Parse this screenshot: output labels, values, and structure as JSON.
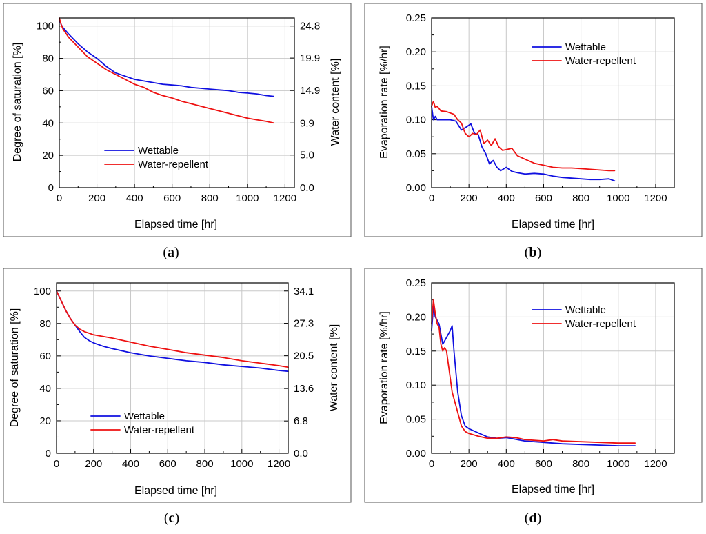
{
  "colors": {
    "wettable": "#1010e0",
    "water_repellent": "#ee1111"
  },
  "chart_data": [
    {
      "id": "a",
      "type": "line",
      "caption": "a",
      "xlabel": "Elapsed time [hr]",
      "ylabel": "Degree of saturation [%]",
      "y2label": "Water content [%]",
      "xlim": [
        0,
        1250
      ],
      "ylim": [
        0,
        105
      ],
      "xticks": [
        0,
        200,
        400,
        600,
        800,
        1000,
        1200
      ],
      "yticks": [
        0,
        20,
        40,
        60,
        80,
        100
      ],
      "y2ticks": [
        {
          "value": 0,
          "label": "0.0"
        },
        {
          "value": 20.2,
          "label": "5.0"
        },
        {
          "value": 40.0,
          "label": "9.9"
        },
        {
          "value": 60.1,
          "label": "14.9"
        },
        {
          "value": 80.2,
          "label": "19.9"
        },
        {
          "value": 100,
          "label": "24.8"
        }
      ],
      "legend": [
        "Wettable",
        "Water-repellent"
      ],
      "legend_position": "lower-left",
      "grid": true,
      "series": [
        {
          "name": "Wettable",
          "color": "wettable",
          "x": [
            0,
            10,
            20,
            50,
            100,
            150,
            200,
            250,
            300,
            350,
            400,
            450,
            500,
            550,
            600,
            650,
            700,
            750,
            800,
            850,
            900,
            950,
            1000,
            1050,
            1100,
            1140
          ],
          "y": [
            104,
            101,
            99,
            95,
            89,
            84,
            80,
            75,
            71,
            69,
            67,
            66,
            65,
            64,
            63.5,
            63,
            62,
            61.5,
            61,
            60.5,
            60,
            59,
            58.5,
            58,
            57,
            56.5
          ]
        },
        {
          "name": "Water-repellent",
          "color": "water_repellent",
          "x": [
            0,
            10,
            20,
            50,
            100,
            150,
            200,
            250,
            300,
            350,
            400,
            450,
            500,
            550,
            600,
            650,
            700,
            750,
            800,
            850,
            900,
            950,
            1000,
            1050,
            1100,
            1140
          ],
          "y": [
            105,
            101,
            98,
            93,
            87,
            81,
            77,
            73,
            70,
            67,
            64,
            62,
            59,
            57,
            55.5,
            53.5,
            52,
            50.5,
            49,
            47.5,
            46,
            44.5,
            43,
            42,
            41,
            40
          ]
        }
      ]
    },
    {
      "id": "b",
      "type": "line",
      "caption": "b",
      "xlabel": "Elapsed time [hr]",
      "ylabel": "Evaporation rate [%/hr]",
      "xlim": [
        0,
        1300
      ],
      "ylim": [
        0,
        0.25
      ],
      "xticks": [
        0,
        200,
        400,
        600,
        800,
        1000,
        1200
      ],
      "yticks": [
        0,
        0.05,
        0.1,
        0.15,
        0.2,
        0.25
      ],
      "ytick_labels": [
        "0.00",
        "0.05",
        "0.10",
        "0.15",
        "0.20",
        "0.25"
      ],
      "legend": [
        "Wettable",
        "Water-repellent"
      ],
      "legend_position": "top-center",
      "grid": true,
      "series": [
        {
          "name": "Wettable",
          "color": "wettable",
          "x": [
            0,
            10,
            20,
            30,
            50,
            80,
            100,
            130,
            160,
            190,
            210,
            230,
            250,
            270,
            290,
            310,
            330,
            350,
            370,
            400,
            430,
            460,
            500,
            550,
            600,
            650,
            700,
            750,
            800,
            850,
            900,
            950,
            980
          ],
          "y": [
            0.12,
            0.1,
            0.105,
            0.1,
            0.1,
            0.1,
            0.1,
            0.098,
            0.085,
            0.09,
            0.094,
            0.08,
            0.078,
            0.06,
            0.05,
            0.035,
            0.04,
            0.03,
            0.025,
            0.03,
            0.024,
            0.022,
            0.02,
            0.021,
            0.02,
            0.017,
            0.015,
            0.014,
            0.013,
            0.012,
            0.012,
            0.013,
            0.01
          ]
        },
        {
          "name": "Water-repellent",
          "color": "water_repellent",
          "x": [
            0,
            10,
            20,
            30,
            50,
            80,
            100,
            120,
            140,
            160,
            180,
            200,
            220,
            240,
            260,
            280,
            300,
            320,
            340,
            360,
            380,
            400,
            430,
            460,
            500,
            550,
            600,
            650,
            700,
            750,
            800,
            850,
            900,
            950,
            980
          ],
          "y": [
            0.12,
            0.127,
            0.118,
            0.12,
            0.113,
            0.112,
            0.11,
            0.108,
            0.1,
            0.095,
            0.08,
            0.075,
            0.08,
            0.078,
            0.085,
            0.065,
            0.07,
            0.062,
            0.072,
            0.06,
            0.055,
            0.056,
            0.058,
            0.047,
            0.042,
            0.036,
            0.033,
            0.03,
            0.029,
            0.029,
            0.028,
            0.027,
            0.026,
            0.025,
            0.025
          ]
        }
      ]
    },
    {
      "id": "c",
      "type": "line",
      "caption": "c",
      "xlabel": "Elapsed time [hr]",
      "ylabel": "Degree of saturation [%]",
      "y2label": "Water content [%]",
      "xlim": [
        0,
        1250
      ],
      "ylim": [
        0,
        105
      ],
      "xticks": [
        0,
        200,
        400,
        600,
        800,
        1000,
        1200
      ],
      "yticks": [
        0,
        20,
        40,
        60,
        80,
        100
      ],
      "y2ticks": [
        {
          "value": 0,
          "label": "0.0"
        },
        {
          "value": 19.9,
          "label": "6.8"
        },
        {
          "value": 39.9,
          "label": "13.6"
        },
        {
          "value": 60.1,
          "label": "20.5"
        },
        {
          "value": 80.1,
          "label": "27.3"
        },
        {
          "value": 100,
          "label": "34.1"
        }
      ],
      "legend": [
        "Wettable",
        "Water-repellent"
      ],
      "legend_position": "lower-left",
      "grid": true,
      "series": [
        {
          "name": "Wettable",
          "color": "wettable",
          "x": [
            0,
            25,
            50,
            75,
            100,
            125,
            150,
            175,
            200,
            250,
            300,
            400,
            500,
            600,
            700,
            800,
            900,
            1000,
            1100,
            1200,
            1250
          ],
          "y": [
            100,
            94,
            88,
            83,
            79,
            75,
            71.5,
            69.5,
            68,
            66,
            64.5,
            62,
            60,
            58.5,
            57,
            56,
            54.5,
            53.5,
            52.5,
            51,
            50.5
          ]
        },
        {
          "name": "Water-repellent",
          "color": "water_repellent",
          "x": [
            0,
            25,
            50,
            75,
            100,
            125,
            150,
            175,
            200,
            250,
            300,
            400,
            500,
            600,
            700,
            800,
            900,
            1000,
            1100,
            1200,
            1250
          ],
          "y": [
            100,
            94,
            88,
            83,
            79,
            76.5,
            75,
            74,
            73,
            72,
            71,
            68.5,
            66,
            64,
            62,
            60.5,
            59,
            57,
            55.5,
            54,
            53
          ]
        }
      ]
    },
    {
      "id": "d",
      "type": "line",
      "caption": "d",
      "xlabel": "Elapsed time [hr]",
      "ylabel": "Evaporation rate [%/hr]",
      "xlim": [
        0,
        1300
      ],
      "ylim": [
        0,
        0.25
      ],
      "xticks": [
        0,
        200,
        400,
        600,
        800,
        1000,
        1200
      ],
      "yticks": [
        0,
        0.05,
        0.1,
        0.15,
        0.2,
        0.25
      ],
      "ytick_labels": [
        "0.00",
        "0.05",
        "0.10",
        "0.15",
        "0.20",
        "0.25"
      ],
      "legend": [
        "Wettable",
        "Water-repellent"
      ],
      "legend_position": "top-center",
      "grid": true,
      "series": [
        {
          "name": "Wettable",
          "color": "wettable",
          "x": [
            0,
            10,
            20,
            30,
            40,
            50,
            60,
            70,
            80,
            90,
            100,
            110,
            120,
            130,
            140,
            160,
            180,
            200,
            250,
            300,
            350,
            400,
            500,
            600,
            700,
            800,
            900,
            1000,
            1090
          ],
          "y": [
            0.18,
            0.215,
            0.2,
            0.195,
            0.19,
            0.175,
            0.16,
            0.165,
            0.17,
            0.175,
            0.18,
            0.187,
            0.15,
            0.12,
            0.09,
            0.055,
            0.04,
            0.036,
            0.03,
            0.024,
            0.022,
            0.023,
            0.018,
            0.016,
            0.014,
            0.013,
            0.012,
            0.011,
            0.011
          ]
        },
        {
          "name": "Water-repellent",
          "color": "water_repellent",
          "x": [
            0,
            10,
            20,
            30,
            40,
            50,
            60,
            70,
            80,
            90,
            100,
            110,
            120,
            130,
            140,
            160,
            180,
            200,
            250,
            300,
            350,
            400,
            450,
            500,
            600,
            650,
            700,
            800,
            900,
            1000,
            1090
          ],
          "y": [
            0.19,
            0.225,
            0.205,
            0.19,
            0.185,
            0.16,
            0.15,
            0.155,
            0.15,
            0.13,
            0.11,
            0.09,
            0.08,
            0.07,
            0.06,
            0.04,
            0.032,
            0.029,
            0.025,
            0.022,
            0.022,
            0.024,
            0.023,
            0.02,
            0.018,
            0.02,
            0.018,
            0.017,
            0.016,
            0.015,
            0.015
          ]
        }
      ]
    }
  ]
}
